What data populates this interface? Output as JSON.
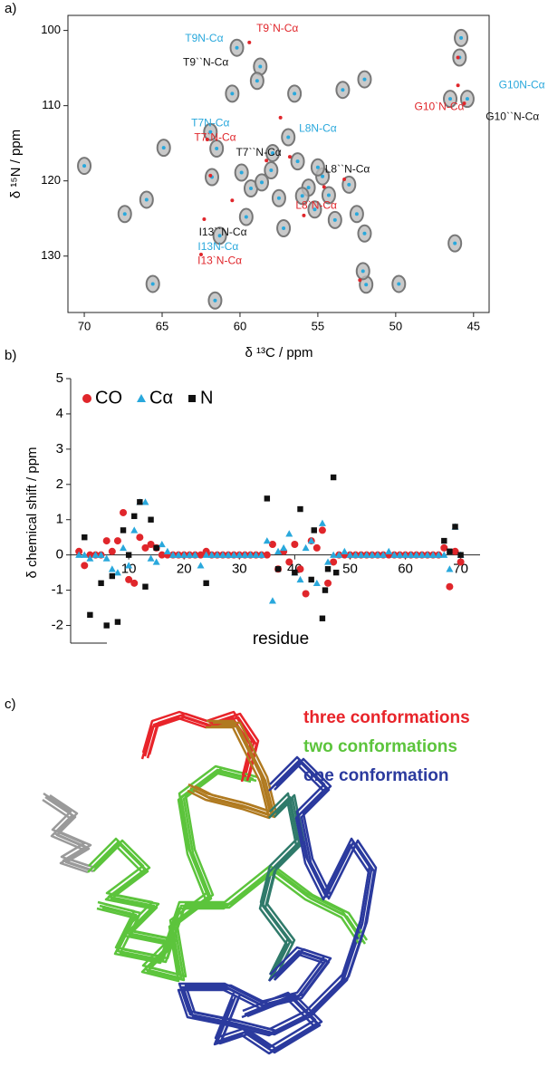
{
  "chart_data": [
    {
      "type": "scatter",
      "label": "a)",
      "xlabel": "δ ¹³C / ppm",
      "ylabel": "δ ¹⁵N / ppm",
      "xlim": [
        71.05,
        44
      ],
      "ylim": [
        137.5,
        98
      ],
      "xticks": [
        70,
        65,
        60,
        55,
        50,
        45
      ],
      "yticks": [
        100,
        110,
        120,
        130
      ],
      "frame": true,
      "halo": "#777777",
      "series": [
        {
          "color": "#29a8dc",
          "marker": "circle",
          "x": [
            70,
            67.4,
            66,
            64.9,
            60.5,
            60.2,
            58.7,
            58.9,
            56.5,
            53.4,
            52,
            45.8,
            45.9,
            46.5,
            45.4,
            65.6,
            61.6,
            51.9,
            49.8,
            52.1,
            46.2,
            61.9,
            61.5,
            61.8,
            59.9,
            59.3,
            58.6,
            58,
            57.5,
            57.9,
            56.9,
            56.3,
            55.6,
            55.2,
            54.7,
            54.3,
            53.9,
            53,
            52.5,
            52,
            61.3,
            59.6,
            57.2,
            56,
            55
          ],
          "values": [
            118,
            124.4,
            122.5,
            115.6,
            108.4,
            102.3,
            104.8,
            106.7,
            108.4,
            107.9,
            106.5,
            101,
            103.6,
            109.1,
            109.1,
            133.7,
            135.9,
            133.8,
            133.7,
            132,
            128.3,
            113.5,
            115.7,
            119.5,
            118.9,
            121,
            120.2,
            118.6,
            122.3,
            116.3,
            114.2,
            117.4,
            120.9,
            123.8,
            119.4,
            121.9,
            125.2,
            120.5,
            124.4,
            127,
            127.3,
            124.8,
            126.3,
            122,
            118.2
          ]
        },
        {
          "color": "#e0262b",
          "marker": "circle",
          "x": [
            59.4,
            46,
            46,
            45.6,
            62.1,
            61.9,
            62.3,
            57.4,
            55.9,
            54.6,
            53.3,
            60.5,
            58.3,
            52.3,
            62.5,
            56.8
          ],
          "values": [
            101.6,
            107.3,
            103.6,
            109.7,
            114.5,
            119.3,
            125.1,
            111.6,
            124.6,
            120.8,
            119.8,
            122.6,
            117.3,
            133.2,
            129.8,
            116.8
          ]
        }
      ],
      "annotations": [
        {
          "text": "T9N-Cα",
          "x": 62.3,
          "y": 101.1,
          "color": "#29a8dc"
        },
        {
          "text": "T9`N-Cα",
          "x": 57.6,
          "y": 99.8,
          "color": "#e0262b"
        },
        {
          "text": "T9``N-Cα",
          "x": 62.2,
          "y": 104.3,
          "color": "#111111"
        },
        {
          "text": "T7N-Cα",
          "x": 61.9,
          "y": 112.4,
          "color": "#29a8dc"
        },
        {
          "text": "T7`N-Cα",
          "x": 61.6,
          "y": 114.3,
          "color": "#e0262b"
        },
        {
          "text": "T7``N-Cα",
          "x": 58.8,
          "y": 116.3,
          "color": "#111111"
        },
        {
          "text": "L8N-Cα",
          "x": 55,
          "y": 113.1,
          "color": "#29a8dc"
        },
        {
          "text": "L8``N-Cα",
          "x": 53.1,
          "y": 118.5,
          "color": "#111111"
        },
        {
          "text": "L8`N-Cα",
          "x": 55.1,
          "y": 123.3,
          "color": "#e0262b"
        },
        {
          "text": "I13``N-Cα",
          "x": 61.1,
          "y": 126.9,
          "color": "#111111"
        },
        {
          "text": "I13N-Cα",
          "x": 61.4,
          "y": 128.8,
          "color": "#29a8dc"
        },
        {
          "text": "I13`N-Cα",
          "x": 61.3,
          "y": 130.7,
          "color": "#e0262b"
        },
        {
          "text": "G10N-Cα",
          "x": 41.9,
          "y": 107.3,
          "color": "#29a8dc"
        },
        {
          "text": "G10`N-Cα",
          "x": 47.2,
          "y": 110.2,
          "color": "#e0262b"
        },
        {
          "text": "G10``N-Cα",
          "x": 42.5,
          "y": 111.5,
          "color": "#111111"
        }
      ]
    },
    {
      "type": "scatter",
      "label": "b)",
      "xlabel": "residue",
      "ylabel": "δ chemical shift / ppm",
      "xlim": [
        -0.5,
        73.5
      ],
      "ylim": [
        -2.5,
        5
      ],
      "xticks": [
        10,
        20,
        30,
        40,
        50,
        60,
        70
      ],
      "yticks": [
        -2,
        -1,
        0,
        1,
        2,
        3,
        4,
        5
      ],
      "frame": false,
      "legend": "upper left",
      "series": [
        {
          "name": "CO",
          "color": "#e0262b",
          "marker": "circle",
          "x": [
            1,
            2,
            3,
            4,
            5,
            6,
            7,
            8,
            9,
            10,
            11,
            12,
            13,
            14,
            15,
            16,
            17,
            18,
            19,
            20,
            21,
            22,
            23,
            24,
            25,
            26,
            27,
            28,
            29,
            30,
            31,
            32,
            33,
            34,
            35,
            36,
            37,
            38,
            39,
            40,
            41,
            42,
            43,
            44,
            45,
            46,
            47,
            48,
            49,
            50,
            51,
            52,
            53,
            54,
            55,
            56,
            57,
            58,
            59,
            60,
            61,
            62,
            63,
            64,
            65,
            66,
            67,
            68,
            69,
            70
          ],
          "values": [
            0.1,
            -0.3,
            0,
            0,
            0,
            0.4,
            0.1,
            0.4,
            1.2,
            -0.7,
            -0.8,
            0.5,
            0.2,
            0.3,
            0.2,
            0,
            0,
            0,
            0,
            0,
            0,
            0,
            0,
            0.1,
            0,
            0,
            0,
            0,
            0,
            0,
            0,
            0,
            0,
            0,
            0,
            0.3,
            -0.4,
            0.1,
            -0.2,
            0.3,
            -0.4,
            -1.1,
            0.4,
            0.2,
            0.7,
            -0.8,
            -0.2,
            0,
            0,
            0,
            0,
            0,
            0,
            0,
            0,
            0,
            0,
            0,
            0,
            0,
            0,
            0,
            0,
            0,
            0,
            0,
            0.2,
            -0.9,
            0.1,
            -0.2
          ]
        },
        {
          "name": "Cα",
          "color": "#29a8dc",
          "marker": "triangle",
          "x": [
            1,
            2,
            3,
            4,
            5,
            6,
            7,
            8,
            9,
            10,
            11,
            12,
            13,
            14,
            15,
            16,
            17,
            18,
            19,
            20,
            21,
            22,
            23,
            24,
            25,
            26,
            27,
            28,
            29,
            30,
            31,
            32,
            33,
            34,
            35,
            36,
            37,
            38,
            39,
            40,
            41,
            42,
            43,
            44,
            45,
            46,
            47,
            48,
            49,
            50,
            51,
            52,
            53,
            54,
            55,
            56,
            57,
            58,
            59,
            60,
            61,
            62,
            63,
            64,
            65,
            66,
            67,
            68,
            69,
            70
          ],
          "values": [
            0,
            0,
            -0.1,
            0,
            0,
            -0.1,
            -0.4,
            -0.5,
            0.2,
            -0.3,
            0.7,
            1.5,
            1.5,
            -0.1,
            -0.2,
            0.3,
            0.1,
            0,
            0,
            0,
            0,
            0,
            -0.3,
            0,
            0,
            0,
            0,
            0,
            0,
            0,
            0,
            0,
            0,
            0,
            0.4,
            -1.3,
            0.1,
            0.2,
            0.6,
            -0.5,
            -0.7,
            0.2,
            0.4,
            -0.8,
            0.9,
            -0.2,
            0,
            0,
            0.1,
            0,
            0,
            0,
            0,
            0,
            0,
            0,
            0.1,
            0,
            0,
            0,
            0,
            0,
            0,
            0,
            0,
            0,
            0,
            -0.4,
            0.8,
            0
          ]
        },
        {
          "name": "N",
          "color": "#111111",
          "marker": "square",
          "x": [
            2,
            3,
            5,
            6,
            7,
            8,
            9,
            10,
            11,
            12,
            13,
            14,
            15,
            24,
            35,
            37,
            40,
            41,
            43,
            43.5,
            45,
            45.5,
            46,
            47,
            47.5,
            67,
            68,
            69,
            70
          ],
          "values": [
            0.5,
            -1.7,
            -0.8,
            -2,
            -0.6,
            -1.9,
            0.7,
            0,
            1.1,
            1.5,
            -0.9,
            1,
            0.2,
            -0.8,
            1.6,
            -0.4,
            -0.5,
            1.3,
            -0.7,
            0.7,
            -1.8,
            -1,
            -0.4,
            2.2,
            -0.5,
            0.4,
            0.1,
            0.8,
            0
          ]
        }
      ]
    }
  ],
  "structure": {
    "label": "c)",
    "legend": [
      {
        "text": "three conformations",
        "color": "#e8242a"
      },
      {
        "text": "two conformations",
        "color": "#5cc43c"
      },
      {
        "text": "one conformation",
        "color": "#2b3a9e"
      }
    ]
  }
}
